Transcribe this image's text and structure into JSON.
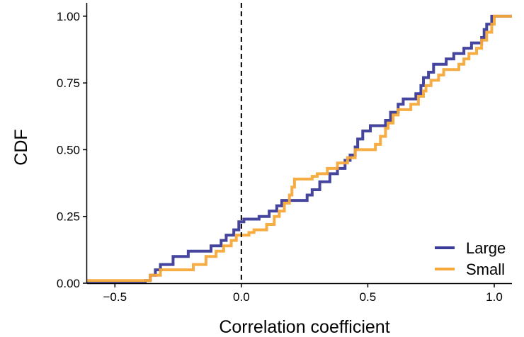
{
  "chart_data": {
    "type": "line",
    "subtype": "step",
    "xlabel": "Correlation coefficient",
    "ylabel": "CDF",
    "xlim": [
      -0.61,
      1.07
    ],
    "ylim": [
      0,
      1.05
    ],
    "x_ticks": [
      {
        "value": -0.5,
        "label": "−0.5"
      },
      {
        "value": 0.0,
        "label": "0.0"
      },
      {
        "value": 0.5,
        "label": "0.5"
      },
      {
        "value": 1.0,
        "label": "1.0"
      }
    ],
    "y_ticks": [
      {
        "value": 0.0,
        "label": "0.00"
      },
      {
        "value": 0.25,
        "label": "0.25"
      },
      {
        "value": 0.5,
        "label": "0.50"
      },
      {
        "value": 0.75,
        "label": "0.75"
      },
      {
        "value": 1.0,
        "label": "1.00"
      }
    ],
    "grid": false,
    "legend_position": "bottom-right",
    "reference_line": {
      "x": 0.0,
      "style": "dashed",
      "color": "#000000"
    },
    "series": [
      {
        "name": "Large",
        "color": "#3B3B98",
        "points": [
          [
            -0.61,
            0.0
          ],
          [
            -0.38,
            0.0
          ],
          [
            -0.38,
            0.01
          ],
          [
            -0.36,
            0.01
          ],
          [
            -0.36,
            0.03
          ],
          [
            -0.34,
            0.03
          ],
          [
            -0.34,
            0.05
          ],
          [
            -0.32,
            0.05
          ],
          [
            -0.32,
            0.07
          ],
          [
            -0.27,
            0.07
          ],
          [
            -0.27,
            0.1
          ],
          [
            -0.21,
            0.1
          ],
          [
            -0.21,
            0.12
          ],
          [
            -0.12,
            0.12
          ],
          [
            -0.12,
            0.14
          ],
          [
            -0.08,
            0.14
          ],
          [
            -0.08,
            0.16
          ],
          [
            -0.06,
            0.16
          ],
          [
            -0.06,
            0.18
          ],
          [
            -0.03,
            0.18
          ],
          [
            -0.03,
            0.2
          ],
          [
            -0.01,
            0.2
          ],
          [
            -0.01,
            0.23
          ],
          [
            0.01,
            0.23
          ],
          [
            0.01,
            0.24
          ],
          [
            0.07,
            0.24
          ],
          [
            0.07,
            0.25
          ],
          [
            0.11,
            0.25
          ],
          [
            0.11,
            0.27
          ],
          [
            0.14,
            0.27
          ],
          [
            0.14,
            0.29
          ],
          [
            0.16,
            0.29
          ],
          [
            0.16,
            0.31
          ],
          [
            0.26,
            0.31
          ],
          [
            0.26,
            0.33
          ],
          [
            0.28,
            0.33
          ],
          [
            0.28,
            0.35
          ],
          [
            0.31,
            0.35
          ],
          [
            0.31,
            0.38
          ],
          [
            0.35,
            0.38
          ],
          [
            0.35,
            0.41
          ],
          [
            0.38,
            0.41
          ],
          [
            0.38,
            0.43
          ],
          [
            0.41,
            0.43
          ],
          [
            0.41,
            0.46
          ],
          [
            0.43,
            0.46
          ],
          [
            0.43,
            0.48
          ],
          [
            0.45,
            0.48
          ],
          [
            0.45,
            0.51
          ],
          [
            0.46,
            0.51
          ],
          [
            0.46,
            0.54
          ],
          [
            0.48,
            0.54
          ],
          [
            0.48,
            0.57
          ],
          [
            0.51,
            0.57
          ],
          [
            0.51,
            0.59
          ],
          [
            0.57,
            0.59
          ],
          [
            0.57,
            0.61
          ],
          [
            0.59,
            0.61
          ],
          [
            0.59,
            0.64
          ],
          [
            0.62,
            0.64
          ],
          [
            0.62,
            0.67
          ],
          [
            0.64,
            0.67
          ],
          [
            0.64,
            0.69
          ],
          [
            0.69,
            0.69
          ],
          [
            0.69,
            0.71
          ],
          [
            0.71,
            0.71
          ],
          [
            0.71,
            0.74
          ],
          [
            0.72,
            0.74
          ],
          [
            0.72,
            0.77
          ],
          [
            0.74,
            0.77
          ],
          [
            0.74,
            0.79
          ],
          [
            0.76,
            0.79
          ],
          [
            0.76,
            0.82
          ],
          [
            0.81,
            0.82
          ],
          [
            0.81,
            0.84
          ],
          [
            0.84,
            0.84
          ],
          [
            0.84,
            0.86
          ],
          [
            0.88,
            0.86
          ],
          [
            0.88,
            0.88
          ],
          [
            0.91,
            0.88
          ],
          [
            0.91,
            0.9
          ],
          [
            0.95,
            0.9
          ],
          [
            0.95,
            0.92
          ],
          [
            0.96,
            0.92
          ],
          [
            0.96,
            0.95
          ],
          [
            0.97,
            0.95
          ],
          [
            0.97,
            0.97
          ],
          [
            0.99,
            0.97
          ],
          [
            0.99,
            1.0
          ],
          [
            1.07,
            1.0
          ]
        ]
      },
      {
        "name": "Small",
        "color": "#F5A93A",
        "points": [
          [
            -0.61,
            0.01
          ],
          [
            -0.36,
            0.01
          ],
          [
            -0.36,
            0.03
          ],
          [
            -0.32,
            0.03
          ],
          [
            -0.32,
            0.05
          ],
          [
            -0.19,
            0.05
          ],
          [
            -0.19,
            0.07
          ],
          [
            -0.14,
            0.07
          ],
          [
            -0.14,
            0.1
          ],
          [
            -0.1,
            0.1
          ],
          [
            -0.1,
            0.12
          ],
          [
            -0.07,
            0.12
          ],
          [
            -0.07,
            0.14
          ],
          [
            -0.04,
            0.14
          ],
          [
            -0.04,
            0.16
          ],
          [
            -0.02,
            0.16
          ],
          [
            -0.02,
            0.18
          ],
          [
            0.03,
            0.18
          ],
          [
            0.03,
            0.19
          ],
          [
            0.05,
            0.19
          ],
          [
            0.05,
            0.2
          ],
          [
            0.1,
            0.2
          ],
          [
            0.1,
            0.22
          ],
          [
            0.13,
            0.22
          ],
          [
            0.13,
            0.25
          ],
          [
            0.15,
            0.25
          ],
          [
            0.15,
            0.27
          ],
          [
            0.17,
            0.27
          ],
          [
            0.17,
            0.3
          ],
          [
            0.19,
            0.3
          ],
          [
            0.19,
            0.33
          ],
          [
            0.2,
            0.33
          ],
          [
            0.2,
            0.36
          ],
          [
            0.21,
            0.36
          ],
          [
            0.21,
            0.39
          ],
          [
            0.28,
            0.39
          ],
          [
            0.28,
            0.4
          ],
          [
            0.3,
            0.4
          ],
          [
            0.3,
            0.41
          ],
          [
            0.34,
            0.41
          ],
          [
            0.34,
            0.43
          ],
          [
            0.38,
            0.43
          ],
          [
            0.38,
            0.45
          ],
          [
            0.42,
            0.45
          ],
          [
            0.42,
            0.47
          ],
          [
            0.45,
            0.47
          ],
          [
            0.45,
            0.5
          ],
          [
            0.53,
            0.5
          ],
          [
            0.53,
            0.52
          ],
          [
            0.55,
            0.52
          ],
          [
            0.55,
            0.55
          ],
          [
            0.57,
            0.55
          ],
          [
            0.57,
            0.58
          ],
          [
            0.58,
            0.58
          ],
          [
            0.58,
            0.6
          ],
          [
            0.6,
            0.6
          ],
          [
            0.6,
            0.63
          ],
          [
            0.62,
            0.63
          ],
          [
            0.62,
            0.65
          ],
          [
            0.67,
            0.65
          ],
          [
            0.67,
            0.67
          ],
          [
            0.7,
            0.67
          ],
          [
            0.7,
            0.7
          ],
          [
            0.72,
            0.7
          ],
          [
            0.72,
            0.72
          ],
          [
            0.73,
            0.72
          ],
          [
            0.73,
            0.74
          ],
          [
            0.75,
            0.74
          ],
          [
            0.75,
            0.76
          ],
          [
            0.78,
            0.76
          ],
          [
            0.78,
            0.78
          ],
          [
            0.8,
            0.78
          ],
          [
            0.8,
            0.8
          ],
          [
            0.86,
            0.8
          ],
          [
            0.86,
            0.82
          ],
          [
            0.88,
            0.82
          ],
          [
            0.88,
            0.84
          ],
          [
            0.9,
            0.84
          ],
          [
            0.9,
            0.86
          ],
          [
            0.93,
            0.86
          ],
          [
            0.93,
            0.88
          ],
          [
            0.95,
            0.88
          ],
          [
            0.95,
            0.91
          ],
          [
            0.97,
            0.91
          ],
          [
            0.97,
            0.94
          ],
          [
            0.99,
            0.94
          ],
          [
            0.99,
            0.97
          ],
          [
            1.0,
            0.97
          ],
          [
            1.0,
            1.0
          ],
          [
            1.07,
            1.0
          ]
        ]
      }
    ]
  }
}
